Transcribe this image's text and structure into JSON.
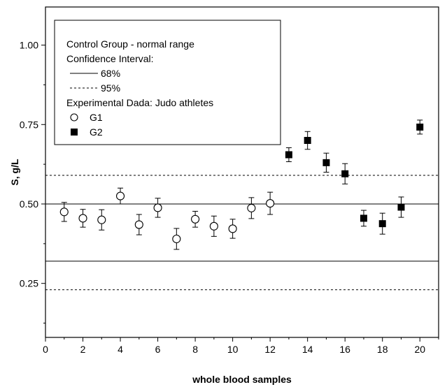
{
  "chart_data": {
    "type": "scatter",
    "xlabel": "whole blood samples",
    "ylabel": "S, g/L",
    "xlim": [
      0,
      21
    ],
    "ylim": [
      0.08,
      1.12
    ],
    "x_ticks": [
      0,
      2,
      4,
      6,
      8,
      10,
      12,
      14,
      16,
      18,
      20
    ],
    "y_ticks": [
      0.25,
      0.5,
      0.75,
      1.0
    ],
    "y_tick_labels": [
      "0.25",
      "0.50",
      "0.75",
      "1.00"
    ],
    "grid": false,
    "legend": {
      "placement": "top-left",
      "lines": [
        {
          "text": "Control Group - normal range",
          "symbol": "none"
        },
        {
          "text": "Confidence Interval:",
          "symbol": "none"
        },
        {
          "text": "68%",
          "symbol": "solid-line"
        },
        {
          "text": "95%",
          "symbol": "dashed-line"
        },
        {
          "text": "Experimental Dada:  Judo athletes",
          "symbol": "none"
        },
        {
          "text": "G1",
          "symbol": "open-circle"
        },
        {
          "text": "G2",
          "symbol": "filled-square"
        }
      ]
    },
    "reference_lines": [
      {
        "name": "68%",
        "style": "solid",
        "y": 0.5
      },
      {
        "name": "68%",
        "style": "solid",
        "y": 0.32
      },
      {
        "name": "95%",
        "style": "dashed",
        "y": 0.59
      },
      {
        "name": "95%",
        "style": "dashed",
        "y": 0.23
      }
    ],
    "series": [
      {
        "name": "G1",
        "marker": "open-circle",
        "x": [
          1,
          2,
          3,
          4,
          5,
          6,
          7,
          8,
          9,
          10,
          11,
          12
        ],
        "y": [
          0.475,
          0.455,
          0.45,
          0.525,
          0.435,
          0.488,
          0.39,
          0.452,
          0.43,
          0.422,
          0.487,
          0.502
        ],
        "yerr": [
          0.03,
          0.028,
          0.032,
          0.025,
          0.032,
          0.03,
          0.033,
          0.025,
          0.032,
          0.03,
          0.033,
          0.035
        ]
      },
      {
        "name": "G2",
        "marker": "filled-square",
        "x": [
          13,
          14,
          15,
          16,
          17,
          18,
          19,
          20
        ],
        "y": [
          0.655,
          0.7,
          0.63,
          0.595,
          0.455,
          0.438,
          0.49,
          0.742
        ],
        "yerr": [
          0.022,
          0.028,
          0.03,
          0.032,
          0.025,
          0.033,
          0.032,
          0.022
        ]
      }
    ]
  }
}
